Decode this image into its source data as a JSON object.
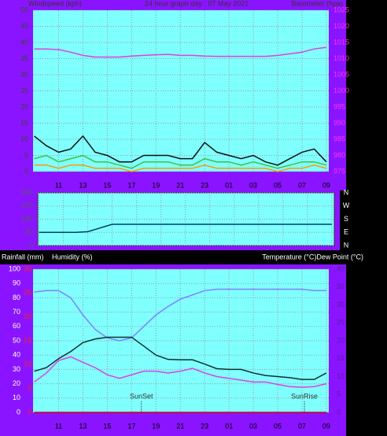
{
  "chart_data": [
    {
      "type": "line",
      "title": "24 hour graph day : 07 May 2021",
      "ylabel": "Windspeed (kph)",
      "y2label": "Barometer (hpa)",
      "x": [
        9,
        10,
        11,
        12,
        13,
        14,
        15,
        16,
        17,
        18,
        19,
        20,
        21,
        22,
        23,
        24,
        25,
        26,
        27,
        28,
        29,
        30,
        31,
        32,
        33
      ],
      "xlim": [
        8.9,
        33.2
      ],
      "xticks": [
        11,
        13,
        15,
        17,
        19,
        21,
        23,
        {
          "value": 25,
          "label": "01"
        },
        {
          "value": 27,
          "label": "03"
        },
        {
          "value": 29,
          "label": "05"
        },
        {
          "value": 31,
          "label": "07"
        },
        {
          "value": 33,
          "label": "09"
        }
      ],
      "ylim": [
        0,
        50
      ],
      "yticks": [
        0,
        5,
        10,
        15,
        20,
        25,
        30,
        35,
        40,
        45,
        50
      ],
      "y2lim": [
        975,
        1025
      ],
      "y2ticks": [
        975,
        980,
        985,
        990,
        995,
        1000,
        1005,
        1010,
        1015,
        1020,
        1025
      ],
      "grid": true,
      "series": [
        {
          "color": "#111111",
          "values": [
            11,
            8,
            6,
            7,
            11,
            6,
            5,
            3,
            3,
            5,
            5,
            5,
            4,
            4,
            9,
            6,
            5,
            4,
            5,
            3,
            2,
            4,
            6,
            7,
            3
          ]
        },
        {
          "color": "#40c040",
          "values": [
            4,
            5,
            3,
            4,
            5,
            3,
            3,
            2,
            1,
            3,
            3,
            3,
            2,
            2,
            4,
            3,
            3,
            2,
            3,
            2,
            1,
            2,
            3,
            3,
            2
          ]
        },
        {
          "color": "#ff9900",
          "values": [
            2,
            2,
            1,
            2,
            2,
            1,
            1,
            1,
            0,
            1,
            1,
            1,
            1,
            1,
            2,
            1,
            1,
            1,
            1,
            1,
            0,
            1,
            1,
            2,
            1
          ]
        },
        {
          "color": "#e040e0",
          "axis": "y2",
          "values": [
            1013,
            1013,
            1012.8,
            1012,
            1011,
            1010.5,
            1010.5,
            1010.5,
            1010.8,
            1011,
            1011.2,
            1011.3,
            1011,
            1011,
            1010.8,
            1010.7,
            1010.7,
            1010.7,
            1010.7,
            1010.7,
            1011,
            1011.5,
            1012,
            1013,
            1013.5
          ]
        }
      ]
    },
    {
      "type": "line",
      "x": [
        9,
        10,
        11,
        12,
        13,
        14,
        15,
        16,
        17,
        18,
        19,
        20,
        21,
        22,
        23,
        24,
        25,
        26,
        27,
        28,
        29,
        30,
        31,
        32,
        33
      ],
      "xlim": [
        8.9,
        33.2
      ],
      "ylim": [
        0,
        360
      ],
      "yticks": [
        0,
        90,
        180,
        270,
        360
      ],
      "y2ticks": [
        {
          "value": 0,
          "label": "N"
        },
        {
          "value": 90,
          "label": "E"
        },
        {
          "value": 180,
          "label": "S"
        },
        {
          "value": 270,
          "label": "W"
        },
        {
          "value": 360,
          "label": "N"
        }
      ],
      "grid": true,
      "series": [
        {
          "color": "#004060",
          "values": [
            90,
            90,
            90,
            90,
            95,
            120,
            145,
            145,
            145,
            145,
            145,
            145,
            145,
            145,
            145,
            145,
            145,
            145,
            145,
            145,
            145,
            145,
            145,
            145,
            145
          ]
        }
      ]
    },
    {
      "type": "line",
      "ylabel": "Humidity (%)",
      "y3label": "Rainfall (mm)",
      "y2label": "Temperature (°C)Dew Point (°C)",
      "x": [
        9,
        10,
        11,
        12,
        13,
        14,
        15,
        16,
        17,
        18,
        19,
        20,
        21,
        22,
        23,
        24,
        25,
        26,
        27,
        28,
        29,
        30,
        31,
        32,
        33
      ],
      "xlim": [
        8.9,
        33.2
      ],
      "xticks": [
        11,
        13,
        15,
        17,
        19,
        21,
        23,
        {
          "value": 25,
          "label": "01"
        },
        {
          "value": 27,
          "label": "03"
        },
        {
          "value": 29,
          "label": "05"
        },
        {
          "value": 31,
          "label": "07"
        },
        {
          "value": 33,
          "label": "09"
        }
      ],
      "ylim": [
        0,
        100
      ],
      "yticks": [
        0,
        10,
        20,
        30,
        40,
        50,
        60,
        70,
        80,
        90,
        100
      ],
      "y3lim": [
        0,
        30
      ],
      "y3ticks": [
        0,
        5,
        10,
        15,
        20,
        25,
        30
      ],
      "y2lim": [
        0,
        40
      ],
      "y2ticks": [
        0,
        5,
        10,
        15,
        20,
        25,
        30,
        35,
        40
      ],
      "grid": true,
      "series": [
        {
          "color": "#8080ff",
          "values": [
            84,
            85,
            85,
            80,
            68,
            58,
            52,
            50,
            52,
            60,
            68,
            74,
            79,
            82,
            85,
            86,
            86,
            86,
            86,
            86,
            86,
            86,
            86,
            85,
            85
          ]
        },
        {
          "color": "#103030",
          "axis": "y2",
          "values": [
            11.5,
            12.5,
            15,
            17,
            19.5,
            20.5,
            21,
            21,
            21,
            18.5,
            16,
            14.8,
            14.7,
            14.7,
            13.5,
            12.2,
            12,
            12,
            11,
            10.3,
            10,
            9.7,
            9.2,
            9.2,
            11
          ]
        },
        {
          "color": "#e040e0",
          "axis": "y2",
          "values": [
            8.5,
            11,
            14.5,
            15.5,
            14,
            12.5,
            10.5,
            9.5,
            10.5,
            11.5,
            11.5,
            11,
            11.5,
            12.3,
            11,
            10,
            9.5,
            9,
            8.5,
            8.5,
            7.8,
            7.2,
            7,
            7.2,
            8
          ]
        },
        {
          "color": "#cc0000",
          "axis": "y3",
          "values": [
            0,
            0,
            0,
            0,
            0,
            0,
            0,
            0,
            0,
            0,
            0,
            0,
            0,
            0,
            0,
            0,
            0,
            0,
            0,
            0,
            0,
            0,
            0,
            0,
            0
          ]
        }
      ],
      "annotations": [
        {
          "text": "SunSet",
          "x": 17.8
        },
        {
          "text": "SunRise",
          "x": 31.2
        }
      ]
    }
  ]
}
